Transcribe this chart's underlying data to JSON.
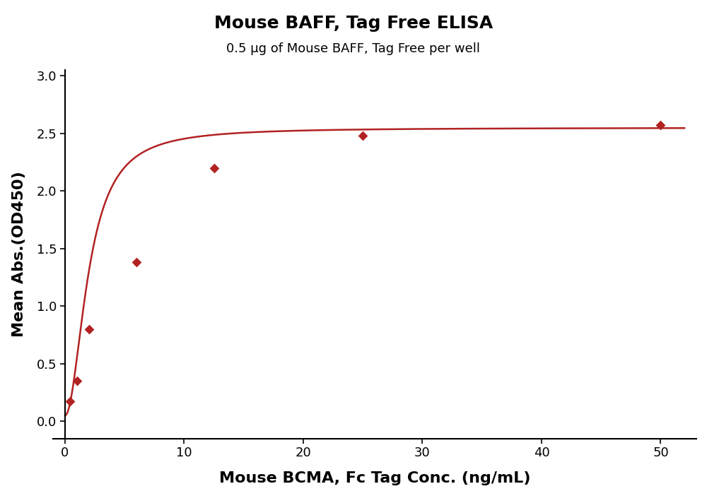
{
  "title": "Mouse BAFF, Tag Free ELISA",
  "subtitle": "0.5 μg of Mouse BAFF, Tag Free per well",
  "xlabel": "Mouse BCMA, Fc Tag Conc. (ng/mL)",
  "ylabel": "Mean Abs.(OD450)",
  "x_data": [
    0.4,
    1.0,
    2.0,
    6.0,
    12.5,
    25.0,
    50.0
  ],
  "y_data": [
    0.17,
    0.35,
    0.8,
    1.38,
    2.2,
    2.48,
    2.57
  ],
  "xlim": [
    -1,
    53
  ],
  "ylim": [
    -0.15,
    3.05
  ],
  "xticks": [
    0,
    10,
    20,
    30,
    40,
    50
  ],
  "yticks": [
    0.0,
    0.5,
    1.0,
    1.5,
    2.0,
    2.5,
    3.0
  ],
  "color": "#B22222",
  "marker": "D",
  "markersize": 7,
  "linewidth": 1.8,
  "title_fontsize": 18,
  "subtitle_fontsize": 13,
  "axis_label_fontsize": 16,
  "tick_fontsize": 13,
  "background_color": "#ffffff"
}
